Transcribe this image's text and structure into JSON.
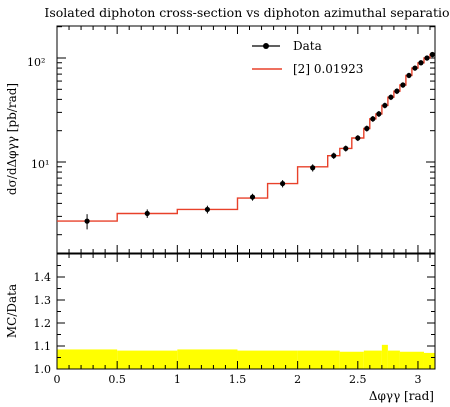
{
  "chart_data": [
    {
      "type": "line",
      "title": "Isolated diphoton cross-section vs diphoton azimuthal separation",
      "ylabel": "dσ/dΔφγγ [pb/rad]",
      "yscale": "log",
      "xlim": [
        0,
        3.1416
      ],
      "ylim": [
        2.0,
        200
      ],
      "y_tick_labels": [
        "10¹",
        "10²"
      ],
      "legend_position": "top-right",
      "series": [
        {
          "name": "Data",
          "color": "#000000",
          "marker": "circle",
          "x": [
            0.25,
            0.75,
            1.25,
            1.625,
            1.875,
            2.125,
            2.3,
            2.4,
            2.5,
            2.575,
            2.625,
            2.675,
            2.725,
            2.775,
            2.825,
            2.875,
            2.925,
            2.975,
            3.025,
            3.075,
            3.12
          ],
          "y": [
            2.7,
            3.2,
            3.5,
            4.6,
            6.2,
            8.8,
            11.5,
            13.5,
            17.0,
            21.0,
            26.0,
            29.0,
            35.0,
            42.0,
            48.0,
            55.0,
            68.0,
            80.0,
            90.0,
            100.0,
            108.0
          ],
          "yerr": [
            0.45,
            0.3,
            0.3,
            0.35,
            0.5,
            0.7,
            0.8,
            0.9,
            1.1,
            1.4,
            1.7,
            1.9,
            2.2,
            2.6,
            3.0,
            3.3,
            4.0,
            4.6,
            5.2,
            5.7,
            6.2
          ]
        },
        {
          "name": "[2] 0.01923",
          "color": "#e8412a",
          "style": "step",
          "bin_edges": [
            0,
            0.5,
            1.0,
            1.5,
            1.75,
            2.0,
            2.25,
            2.35,
            2.45,
            2.55,
            2.6,
            2.65,
            2.7,
            2.75,
            2.8,
            2.85,
            2.9,
            2.95,
            3.0,
            3.05,
            3.1,
            3.1416
          ],
          "values": [
            2.7,
            3.2,
            3.5,
            4.5,
            6.2,
            9.0,
            11.5,
            13.5,
            17.0,
            21.0,
            26.0,
            29.0,
            35.0,
            42.0,
            48.0,
            55.0,
            68.0,
            80.0,
            90.0,
            100.0,
            108.0
          ]
        }
      ]
    },
    {
      "type": "area",
      "ylabel": "MC/Data",
      "xlabel": "Δφγγ [rad]",
      "xlim": [
        0,
        3.1416
      ],
      "ylim": [
        1.0,
        1.5
      ],
      "x_ticks": [
        0,
        0.5,
        1,
        1.5,
        2,
        2.5,
        3
      ],
      "y_ticks": [
        1.0,
        1.1,
        1.2,
        1.3,
        1.4
      ],
      "band_color": "#ffff00",
      "band": {
        "bin_edges": [
          0,
          0.5,
          1.0,
          1.5,
          2.0,
          2.35,
          2.55,
          2.7,
          2.75,
          2.85,
          3.05,
          3.1416
        ],
        "lower": [
          1.0,
          1.0,
          1.0,
          1.0,
          1.0,
          1.0,
          1.0,
          1.0,
          1.0,
          1.0,
          1.0
        ],
        "upper": [
          1.085,
          1.08,
          1.085,
          1.08,
          1.08,
          1.075,
          1.08,
          1.105,
          1.08,
          1.075,
          1.07
        ]
      }
    }
  ]
}
